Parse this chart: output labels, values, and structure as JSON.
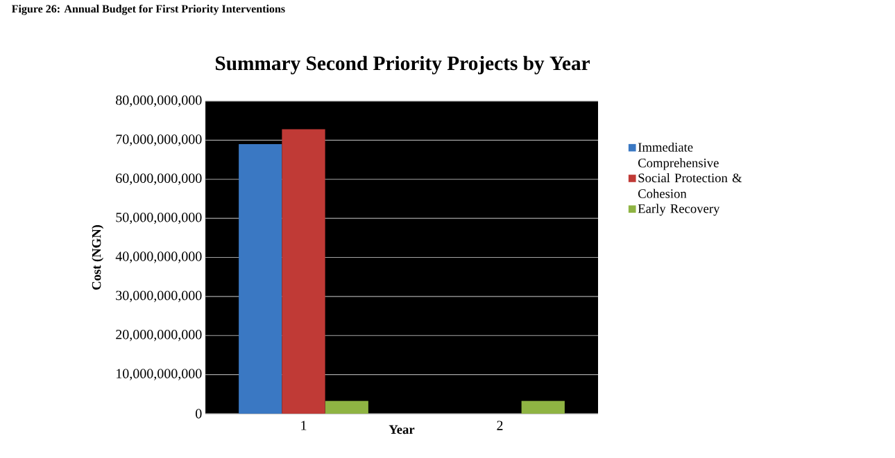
{
  "chart_data": {
    "type": "bar",
    "title": "Summary Second Priority Projects by Year",
    "annotations": [
      "Figure 26: Annual Budget for First Priority Interventions"
    ],
    "xlabel": "Year",
    "ylabel": "Cost (NGN)",
    "categories": [
      "1",
      "2"
    ],
    "series": [
      {
        "name": "Immediate Comprehensive",
        "color": "#3a78c3",
        "values": [
          69000000000,
          0
        ]
      },
      {
        "name": "Social Protection & Cohesion",
        "color": "#c03a36",
        "values": [
          72800000000,
          0
        ]
      },
      {
        "name": "Early Recovery",
        "color": "#8fb443",
        "values": [
          3300000000,
          3300000000
        ]
      }
    ],
    "ylim": [
      0,
      80000000000
    ],
    "yticks": [
      {
        "value": 0,
        "label": "0"
      },
      {
        "value": 10000000000,
        "label": "10,000,000,000"
      },
      {
        "value": 20000000000,
        "label": "20,000,000,000"
      },
      {
        "value": 30000000000,
        "label": "30,000,000,000"
      },
      {
        "value": 40000000000,
        "label": "40,000,000,000"
      },
      {
        "value": 50000000000,
        "label": "50,000,000,000"
      },
      {
        "value": 60000000000,
        "label": "60,000,000,000"
      },
      {
        "value": 70000000000,
        "label": "70,000,000,000"
      },
      {
        "value": 80000000000,
        "label": "80,000,000,000"
      }
    ],
    "grid": "y",
    "legend": "right"
  }
}
